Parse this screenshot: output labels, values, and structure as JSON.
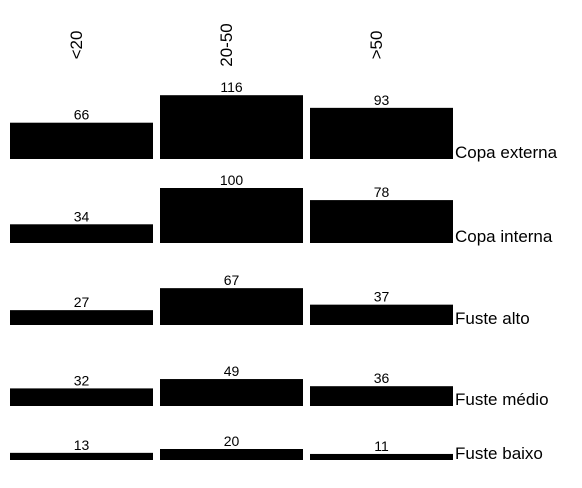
{
  "chart_data": {
    "type": "bar",
    "layout": "small-multiples",
    "columns": [
      "<20",
      "20-50",
      ">50"
    ],
    "rows": [
      {
        "label": "Copa externa",
        "values": [
          66,
          116,
          93
        ]
      },
      {
        "label": "Copa interna",
        "values": [
          34,
          100,
          78
        ]
      },
      {
        "label": "Fuste alto",
        "values": [
          27,
          67,
          37
        ]
      },
      {
        "label": "Fuste médio",
        "values": [
          32,
          49,
          36
        ]
      },
      {
        "label": "Fuste baixo",
        "values": [
          13,
          20,
          11
        ]
      }
    ],
    "bar_color": "#000000",
    "grid": false
  }
}
